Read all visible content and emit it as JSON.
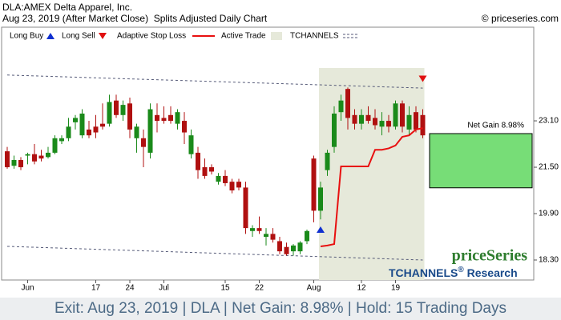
{
  "chart_data": {
    "type": "candlestick",
    "title": "DLA:AMEX Delta Apparel, Inc.",
    "subtitle": "Aug 23, 2019 (After Market Close)  Splits Adjusted Daily Chart",
    "copyright": "© priceseries.com",
    "categories": [
      null,
      null,
      null,
      "Jun",
      null,
      null,
      null,
      null,
      null,
      null,
      null,
      null,
      null,
      "17",
      null,
      null,
      null,
      null,
      "24",
      null,
      null,
      null,
      null,
      "Jul",
      null,
      null,
      null,
      null,
      null,
      null,
      null,
      null,
      "15",
      null,
      null,
      null,
      null,
      "22",
      null,
      null,
      null,
      null,
      null,
      null,
      null,
      "Aug",
      null,
      null,
      null,
      null,
      null,
      null,
      "12",
      null,
      null,
      null,
      null,
      "19",
      null,
      null,
      null,
      null
    ],
    "open": [
      22.05,
      21.55,
      21.75,
      21.9,
      21.95,
      21.9,
      21.85,
      22.0,
      22.4,
      22.5,
      23.05,
      22.6,
      22.8,
      22.9,
      23.0,
      23.0,
      23.8,
      23.3,
      23.7,
      22.5,
      22.5,
      22.0,
      23.3,
      23.2,
      23.3,
      23.0,
      23.1,
      21.95,
      22.0,
      21.5,
      21.5,
      21.0,
      21.2,
      21.0,
      21.0,
      20.8,
      19.3,
      19.4,
      19.1,
      19.2,
      18.95,
      18.75,
      18.6,
      18.6,
      18.95,
      21.8,
      20.0,
      21.4,
      22.2,
      23.4,
      24.2,
      23.3,
      23.0,
      23.3,
      23.2,
      22.9,
      23.1,
      22.9,
      23.7,
      22.8,
      23.4,
      23.3
    ],
    "high": [
      22.2,
      21.9,
      21.85,
      22.0,
      22.3,
      22.1,
      22.2,
      22.6,
      22.6,
      23.2,
      23.3,
      23.5,
      23.1,
      23.3,
      23.7,
      24.0,
      24.0,
      23.8,
      23.9,
      23.0,
      22.8,
      23.7,
      23.7,
      23.6,
      23.6,
      23.5,
      23.4,
      22.8,
      22.2,
      21.8,
      21.6,
      21.3,
      21.4,
      21.1,
      21.1,
      21.0,
      19.5,
      19.8,
      19.4,
      19.4,
      19.1,
      18.9,
      18.85,
      18.95,
      19.35,
      21.9,
      21.0,
      22.1,
      23.6,
      24.0,
      24.25,
      23.5,
      23.5,
      23.6,
      23.5,
      23.4,
      23.3,
      23.8,
      23.8,
      23.6,
      23.6,
      23.5
    ],
    "low": [
      21.45,
      21.45,
      21.4,
      21.6,
      21.6,
      21.7,
      21.8,
      21.95,
      22.3,
      22.4,
      22.8,
      22.5,
      22.5,
      22.5,
      22.8,
      22.9,
      23.2,
      23.1,
      22.5,
      22.0,
      21.5,
      21.8,
      22.7,
      23.0,
      23.0,
      22.8,
      22.3,
      21.8,
      21.1,
      21.1,
      21.25,
      20.9,
      20.85,
      20.6,
      20.7,
      19.2,
      19.1,
      19.2,
      18.8,
      18.9,
      18.5,
      18.45,
      18.45,
      18.5,
      18.85,
      19.6,
      19.7,
      21.2,
      22.0,
      23.1,
      22.8,
      22.8,
      22.8,
      23.0,
      22.8,
      22.6,
      22.7,
      22.8,
      22.7,
      22.6,
      22.7,
      22.5
    ],
    "close": [
      21.5,
      21.75,
      21.5,
      21.95,
      21.7,
      21.8,
      22.0,
      22.5,
      22.5,
      22.9,
      23.2,
      23.35,
      22.6,
      22.7,
      22.9,
      23.75,
      23.3,
      23.65,
      22.8,
      22.9,
      22.2,
      23.5,
      23.1,
      23.1,
      23.1,
      23.4,
      22.7,
      22.6,
      21.4,
      21.2,
      21.35,
      21.2,
      20.95,
      20.7,
      20.8,
      19.4,
      19.4,
      19.3,
      19.2,
      19.0,
      18.6,
      18.5,
      18.8,
      18.9,
      19.3,
      20.0,
      20.8,
      22.0,
      23.35,
      23.8,
      23.2,
      23.0,
      23.3,
      23.1,
      22.95,
      23.1,
      22.9,
      23.7,
      22.9,
      23.3,
      22.8,
      22.6
    ],
    "up_color": "#1a8a1a",
    "down_color": "#b01010",
    "stop_loss": {
      "name": "Adaptive Stop Loss",
      "color": "#e81010",
      "values": [
        null,
        null,
        null,
        null,
        null,
        null,
        null,
        null,
        null,
        null,
        null,
        null,
        null,
        null,
        null,
        null,
        null,
        null,
        null,
        null,
        null,
        null,
        null,
        null,
        null,
        null,
        null,
        null,
        null,
        null,
        null,
        null,
        null,
        null,
        null,
        null,
        null,
        null,
        null,
        null,
        null,
        null,
        null,
        null,
        null,
        null,
        18.77,
        18.8,
        18.85,
        21.53,
        21.53,
        21.53,
        21.53,
        21.53,
        22.1,
        22.1,
        22.15,
        22.25,
        22.55,
        22.6,
        22.8,
        22.85
      ]
    },
    "active_trade": {
      "name": "Active Trade",
      "color": "#e6e9da",
      "entry_index": 46,
      "exit_index": 61
    },
    "channels": {
      "name": "TCHANNELS",
      "color": "#555a78",
      "upper": [
        24.68,
        24.23
      ],
      "lower": [
        18.77,
        18.3
      ]
    },
    "signals": [
      {
        "name": "Long Buy",
        "color": "#1030d0",
        "index": 46,
        "value": 19.35
      },
      {
        "name": "Long Sell",
        "color": "#e01010",
        "index": 61,
        "value": 24.55
      }
    ],
    "net_gain": {
      "label": "Net Gain 8.98%",
      "from": 20.79,
      "to": 22.66,
      "color": "#77dd77"
    },
    "ylim": [
      17.61,
      26.33
    ],
    "yticks": [
      {
        "value": 23.1,
        "label": "23.10"
      },
      {
        "value": 21.5,
        "label": "21.50"
      },
      {
        "value": 19.9,
        "label": "19.90"
      },
      {
        "value": 18.3,
        "label": "18.30"
      }
    ],
    "logo": {
      "brand": "priceSeries",
      "product": "TCHANNELS",
      "mark": "®",
      "suffix": " Research"
    },
    "footer": "Exit: Aug 23, 2019 | DLA | Net Gain: 8.98% | Hold: 15 Trading Days"
  }
}
